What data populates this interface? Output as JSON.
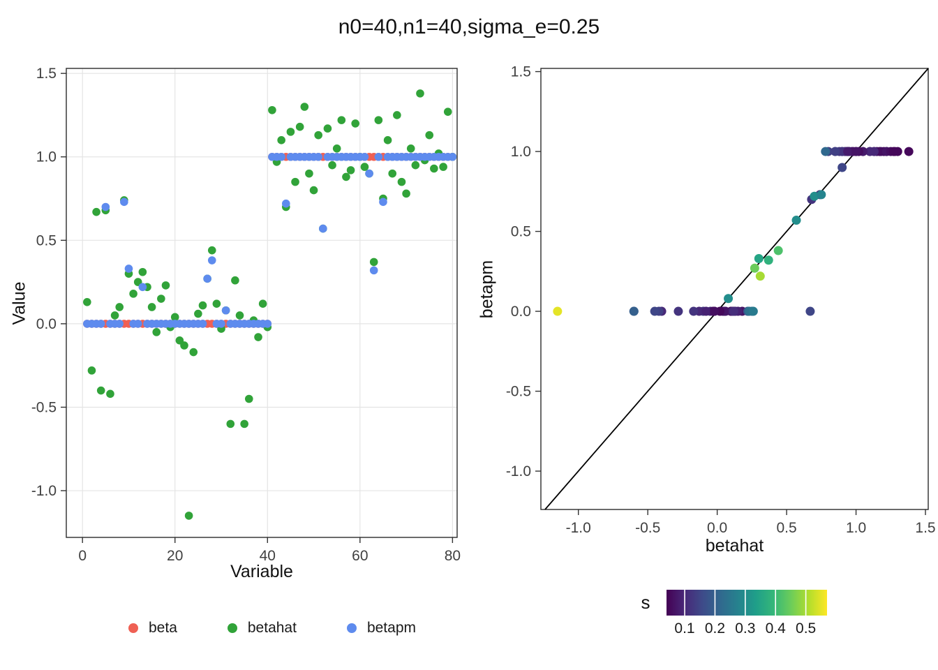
{
  "title": "n0=40,n1=40,sigma_e=0.25",
  "points": {
    "variable": [
      1,
      2,
      3,
      4,
      5,
      6,
      7,
      8,
      9,
      10,
      11,
      12,
      13,
      14,
      15,
      16,
      17,
      18,
      19,
      20,
      21,
      22,
      23,
      24,
      25,
      26,
      27,
      28,
      29,
      30,
      31,
      32,
      33,
      34,
      35,
      36,
      37,
      38,
      39,
      40,
      41,
      42,
      43,
      44,
      45,
      46,
      47,
      48,
      49,
      50,
      51,
      52,
      53,
      54,
      55,
      56,
      57,
      58,
      59,
      60,
      61,
      62,
      63,
      64,
      65,
      66,
      67,
      68,
      69,
      70,
      71,
      72,
      73,
      74,
      75,
      76,
      77,
      78,
      79,
      80
    ],
    "beta": [
      0,
      0,
      0,
      0,
      0,
      0,
      0,
      0,
      0,
      0,
      0,
      0,
      0,
      0,
      0,
      0,
      0,
      0,
      0,
      0,
      0,
      0,
      0,
      0,
      0,
      0,
      0,
      0,
      0,
      0,
      0,
      0,
      0,
      0,
      0,
      0,
      0,
      0,
      0,
      0,
      1,
      1,
      1,
      1,
      1,
      1,
      1,
      1,
      1,
      1,
      1,
      1,
      1,
      1,
      1,
      1,
      1,
      1,
      1,
      1,
      1,
      1,
      1,
      1,
      1,
      1,
      1,
      1,
      1,
      1,
      1,
      1,
      1,
      1,
      1,
      1,
      1,
      1,
      1,
      1
    ],
    "betahat": [
      0.13,
      -0.28,
      0.67,
      -0.4,
      0.68,
      -0.42,
      0.05,
      0.1,
      0.74,
      0.3,
      0.18,
      0.25,
      0.31,
      0.22,
      0.1,
      -0.05,
      0.15,
      0.23,
      -0.02,
      0.04,
      -0.1,
      -0.13,
      -1.15,
      -0.17,
      0.06,
      0.11,
      0.27,
      0.44,
      0.12,
      -0.03,
      0.08,
      -0.6,
      0.26,
      0.05,
      -0.6,
      -0.45,
      0.02,
      -0.08,
      0.12,
      -0.02,
      1.28,
      0.97,
      1.1,
      0.7,
      1.15,
      0.85,
      1.18,
      1.3,
      0.9,
      0.8,
      1.13,
      0.57,
      1.17,
      0.95,
      1.05,
      1.22,
      0.88,
      0.92,
      1.2,
      1.0,
      0.94,
      0.9,
      0.37,
      1.22,
      0.75,
      1.1,
      0.9,
      1.25,
      0.85,
      0.78,
      1.05,
      0.95,
      1.38,
      0.98,
      1.13,
      0.93,
      1.02,
      0.94,
      1.27,
      1.0
    ],
    "betapm": [
      0,
      0,
      0,
      0,
      0.7,
      0,
      0,
      0,
      0.73,
      0.33,
      0,
      0,
      0.22,
      0,
      0,
      0,
      0,
      0,
      0,
      0,
      0,
      0,
      0,
      0,
      0,
      0,
      0.27,
      0.38,
      0,
      0,
      0.08,
      0,
      0,
      0,
      0,
      0,
      0,
      0,
      0,
      0,
      1,
      1,
      1,
      0.72,
      1,
      1,
      1,
      1,
      1,
      1,
      1,
      0.57,
      1,
      1,
      1,
      1,
      1,
      1,
      1,
      1,
      1,
      0.9,
      0.32,
      1,
      0.73,
      1,
      1,
      1,
      1,
      1,
      1,
      1,
      1,
      1,
      1,
      1,
      1,
      1,
      1,
      1
    ],
    "s": [
      0.08,
      0.12,
      0.15,
      0.1,
      0.12,
      0.14,
      0.06,
      0.09,
      0.1,
      0.35,
      0.07,
      0.22,
      0.5,
      0.18,
      0.05,
      0.11,
      0.09,
      0.24,
      0.06,
      0.08,
      0.13,
      0.1,
      0.55,
      0.12,
      0.07,
      0.09,
      0.45,
      0.42,
      0.08,
      0.06,
      0.3,
      0.18,
      0.26,
      0.07,
      0.2,
      0.15,
      0.05,
      0.09,
      0.11,
      0.06,
      0.06,
      0.08,
      0.1,
      0.3,
      0.07,
      0.12,
      0.09,
      0.05,
      0.11,
      0.14,
      0.08,
      0.3,
      0.06,
      0.09,
      0.07,
      0.1,
      0.13,
      0.08,
      0.06,
      0.05,
      0.09,
      0.15,
      0.38,
      0.07,
      0.28,
      0.1,
      0.12,
      0.06,
      0.14,
      0.22,
      0.08,
      0.09,
      0.05,
      0.07,
      0.1,
      0.12,
      0.06,
      0.08,
      0.05,
      0.07
    ]
  },
  "chart_data": [
    {
      "type": "scatter",
      "title": "n0=40,n1=40,sigma_e=0.25",
      "xlabel": "Variable",
      "ylabel": "Value",
      "xlim": [
        -3.5,
        81
      ],
      "ylim": [
        -1.28,
        1.53
      ],
      "xticks": [
        0,
        20,
        40,
        60,
        80
      ],
      "yticks": [
        -1.0,
        -0.5,
        0.0,
        0.5,
        1.0,
        1.5
      ],
      "grid": true,
      "legend_position": "bottom",
      "series": [
        {
          "name": "beta",
          "key": "beta",
          "color": "#ef6054"
        },
        {
          "name": "betahat",
          "key": "betahat",
          "color": "#31a339"
        },
        {
          "name": "betapm",
          "key": "betapm",
          "color": "#5e8bee"
        }
      ]
    },
    {
      "type": "scatter",
      "title": "",
      "xlabel": "betahat",
      "ylabel": "betapm",
      "xlim": [
        -1.27,
        1.52
      ],
      "ylim": [
        -1.24,
        1.52
      ],
      "xticks": [
        -1.0,
        -0.5,
        0.0,
        0.5,
        1.0,
        1.5
      ],
      "yticks": [
        -1.0,
        -0.5,
        0.0,
        0.5,
        1.0,
        1.5
      ],
      "grid": false,
      "x_key": "betahat",
      "y_key": "betapm",
      "color_key": "s",
      "identity_line": true,
      "line_color": "#000000",
      "colorbar": {
        "label": "s",
        "palette": "viridis",
        "domain": [
          0.04,
          0.57
        ],
        "ticks": [
          "0.1",
          "0.2",
          "0.3",
          "0.4",
          "0.5"
        ],
        "tick_values": [
          0.1,
          0.2,
          0.3,
          0.4,
          0.5
        ]
      }
    }
  ]
}
